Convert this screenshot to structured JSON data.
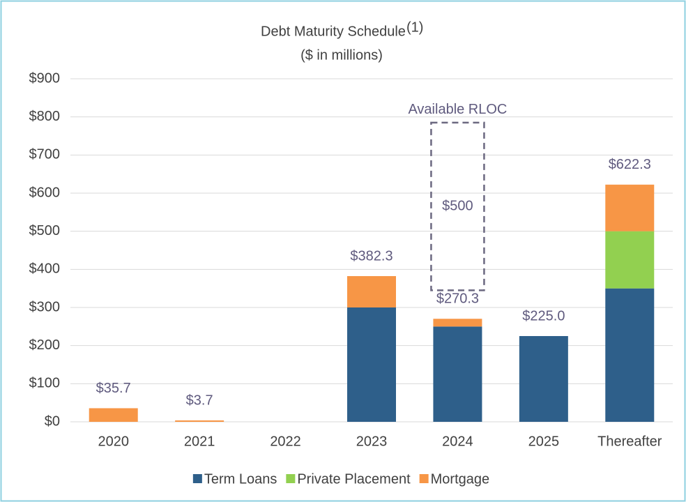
{
  "chart_data": {
    "type": "stacked_bar",
    "title": "Debt Maturity Schedule",
    "title_note": "(1)",
    "subtitle": "($ in millions)",
    "categories": [
      "2020",
      "2021",
      "2022",
      "2023",
      "2024",
      "2025",
      "Thereafter"
    ],
    "series": [
      {
        "name": "Term Loans",
        "color": "#2e5f8a",
        "values": [
          0,
          0,
          0,
          300,
          250,
          225,
          350
        ]
      },
      {
        "name": "Private Placement",
        "color": "#92d050",
        "values": [
          0,
          0,
          0,
          0,
          0,
          0,
          150
        ]
      },
      {
        "name": "Mortgage",
        "color": "#f79646",
        "values": [
          35.7,
          3.7,
          0,
          82.3,
          20.3,
          0,
          122.3
        ]
      }
    ],
    "totals": [
      35.7,
      3.7,
      null,
      382.3,
      270.3,
      225,
      622.3
    ],
    "total_labels": [
      "$35.7",
      "$3.7",
      null,
      "$382.3",
      "$270.3",
      "$225.0",
      "$622.3"
    ],
    "annotation": {
      "label": "Available RLOC",
      "text": "$500",
      "category": 4,
      "range": [
        345,
        785
      ]
    },
    "ylim": [
      0,
      900
    ],
    "yticks": [
      {
        "value": 0,
        "label": "$0"
      },
      {
        "value": 100,
        "label": "$100"
      },
      {
        "value": 200,
        "label": "$200"
      },
      {
        "value": 300,
        "label": "$300"
      },
      {
        "value": 400,
        "label": "$400"
      },
      {
        "value": 500,
        "label": "$500"
      },
      {
        "value": 600,
        "label": "$600"
      },
      {
        "value": 700,
        "label": "$700"
      },
      {
        "value": 800,
        "label": "$800"
      },
      {
        "value": 900,
        "label": "$900"
      }
    ],
    "grid": true,
    "legend": "bottom"
  }
}
